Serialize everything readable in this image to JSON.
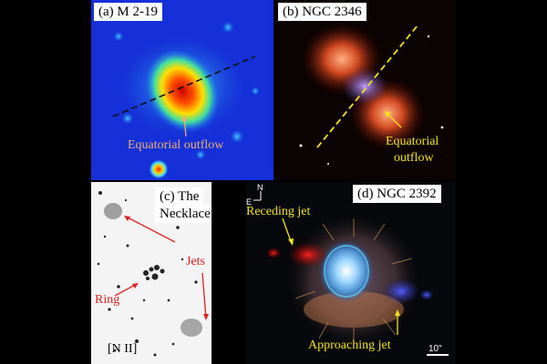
{
  "panels": {
    "a": {
      "label": "(a) M 2-19",
      "annotation": "Equatorial outflow",
      "annotation_color": "#f0b070"
    },
    "b": {
      "label": "(b) NGC 2346",
      "annotation_line1": "Equatorial",
      "annotation_line2": "outflow",
      "annotation_color": "#f3e21a"
    },
    "c": {
      "label_line1": "(c) The",
      "label_line2": "Necklace",
      "jets": "Jets",
      "ring": "Ring",
      "filter": "[N II]",
      "annotation_color": "#e02020"
    },
    "d": {
      "label": "(d) NGC 2392",
      "north": "N",
      "east": "E",
      "receding": "Receding jet",
      "approaching": "Approaching jet",
      "scale": "10\"",
      "annotation_color": "#f3e21a"
    }
  }
}
